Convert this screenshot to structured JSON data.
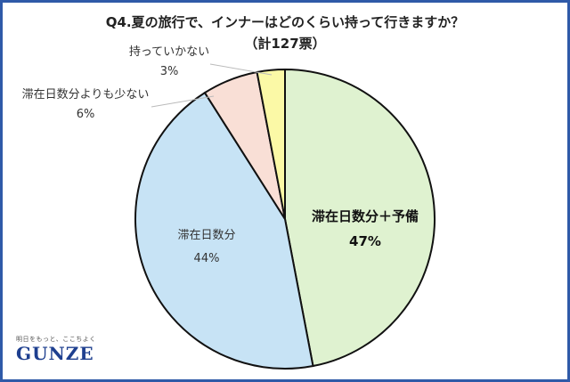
{
  "title": "Q4.夏の旅行で、インナーはどのくらい持って行きますか？",
  "subtitle": "（計127票）",
  "logo": {
    "tagline": "明日をもっと、ここちよく",
    "brand": "GUNZE"
  },
  "colors": {
    "border": "#2f5aa8"
  },
  "chart_data": {
    "type": "pie",
    "slices": [
      {
        "name": "滞在日数分＋予備",
        "value_label": "47%",
        "value": 47,
        "color": "#dff2d0"
      },
      {
        "name": "滞在日数分",
        "value_label": "44%",
        "value": 44,
        "color": "#c7e3f5"
      },
      {
        "name": "滞在日数分よりも少ない",
        "value_label": "6%",
        "value": 6,
        "color": "#f9dfd6"
      },
      {
        "name": "持っていかない",
        "value_label": "3%",
        "value": 3,
        "color": "#fbf9a6"
      }
    ]
  }
}
